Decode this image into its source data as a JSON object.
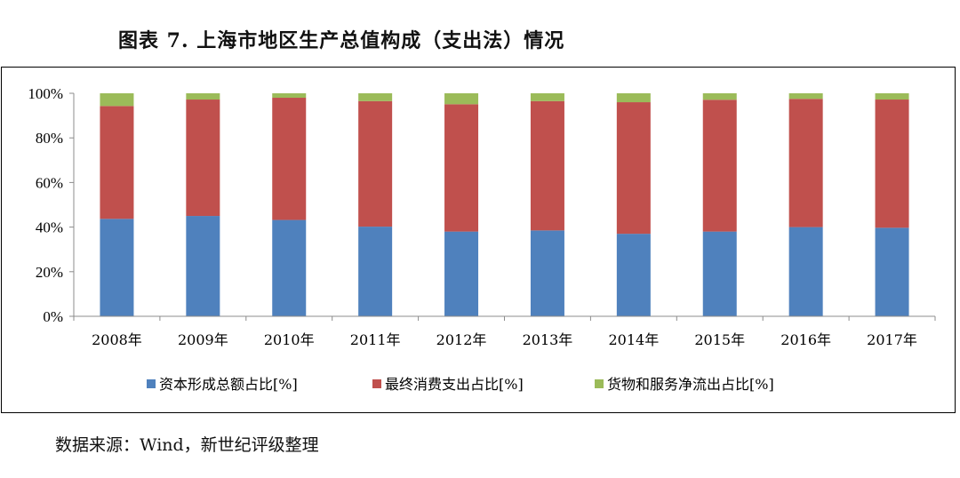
{
  "title": "图表 7. 上海市地区生产总值构成（支出法）情况",
  "source": "数据来源：Wind，新世纪评级整理",
  "chart_data": {
    "type": "bar",
    "stacked": true,
    "categories": [
      "2008年",
      "2009年",
      "2010年",
      "2011年",
      "2012年",
      "2013年",
      "2014年",
      "2015年",
      "2016年",
      "2017年"
    ],
    "series": [
      {
        "name": "资本形成总额占比[%]",
        "color": "#4F81BD",
        "values": [
          43.7,
          45.0,
          43.2,
          40.2,
          38.0,
          38.5,
          37.0,
          38.0,
          40.0,
          39.7
        ]
      },
      {
        "name": "最终消费支出占比[%]",
        "color": "#C0504D",
        "values": [
          50.6,
          52.2,
          54.8,
          56.3,
          57.1,
          58.0,
          59.0,
          59.1,
          57.5,
          57.5
        ]
      },
      {
        "name": "货物和服务净流出占比[%]",
        "color": "#9BBB59",
        "values": [
          5.7,
          2.8,
          2.0,
          3.5,
          4.9,
          3.5,
          4.0,
          2.9,
          2.5,
          2.8
        ]
      }
    ],
    "ylim": [
      0,
      100
    ],
    "yticks": [
      "0%",
      "20%",
      "40%",
      "60%",
      "80%",
      "100%"
    ],
    "grid": false,
    "legend_position": "bottom"
  }
}
